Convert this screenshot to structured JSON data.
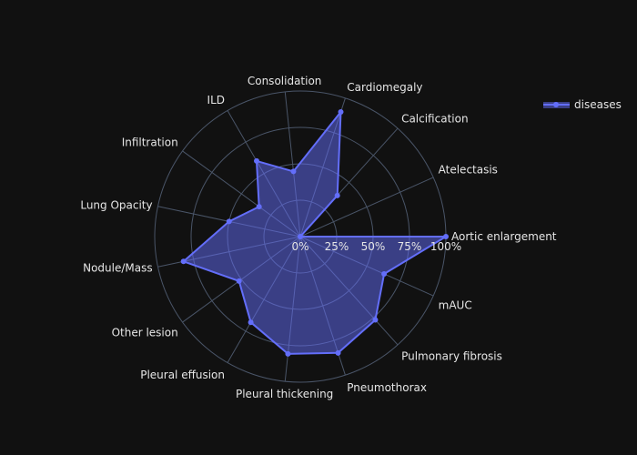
{
  "colors": {
    "background": "#111111",
    "grid": "#4a5568",
    "series_line": "#636efa",
    "series_fill": "#636efa",
    "text": "#e6e6e6"
  },
  "chart_data": {
    "type": "radar",
    "categories": [
      "Aortic enlargement",
      "Atelectasis",
      "Calcification",
      "Cardiomegaly",
      "Consolidation",
      "ILD",
      "Infiltration",
      "Lung Opacity",
      "Nodule/Mass",
      "Other lesion",
      "Pleural effusion",
      "Pleural thickening",
      "Pneumothorax",
      "Pulmonary fibrosis",
      "mAUC"
    ],
    "series": [
      {
        "name": "diseases",
        "values": [
          1.0,
          0.0,
          0.38,
          0.9,
          0.45,
          0.6,
          0.35,
          0.5,
          0.82,
          0.52,
          0.68,
          0.81,
          0.84,
          0.77,
          0.63
        ]
      }
    ],
    "radial_ticks": [
      "0%",
      "25%",
      "50%",
      "75%",
      "100%"
    ],
    "radial_range": [
      0,
      1
    ],
    "grid": true,
    "legend_position": "top-right"
  }
}
